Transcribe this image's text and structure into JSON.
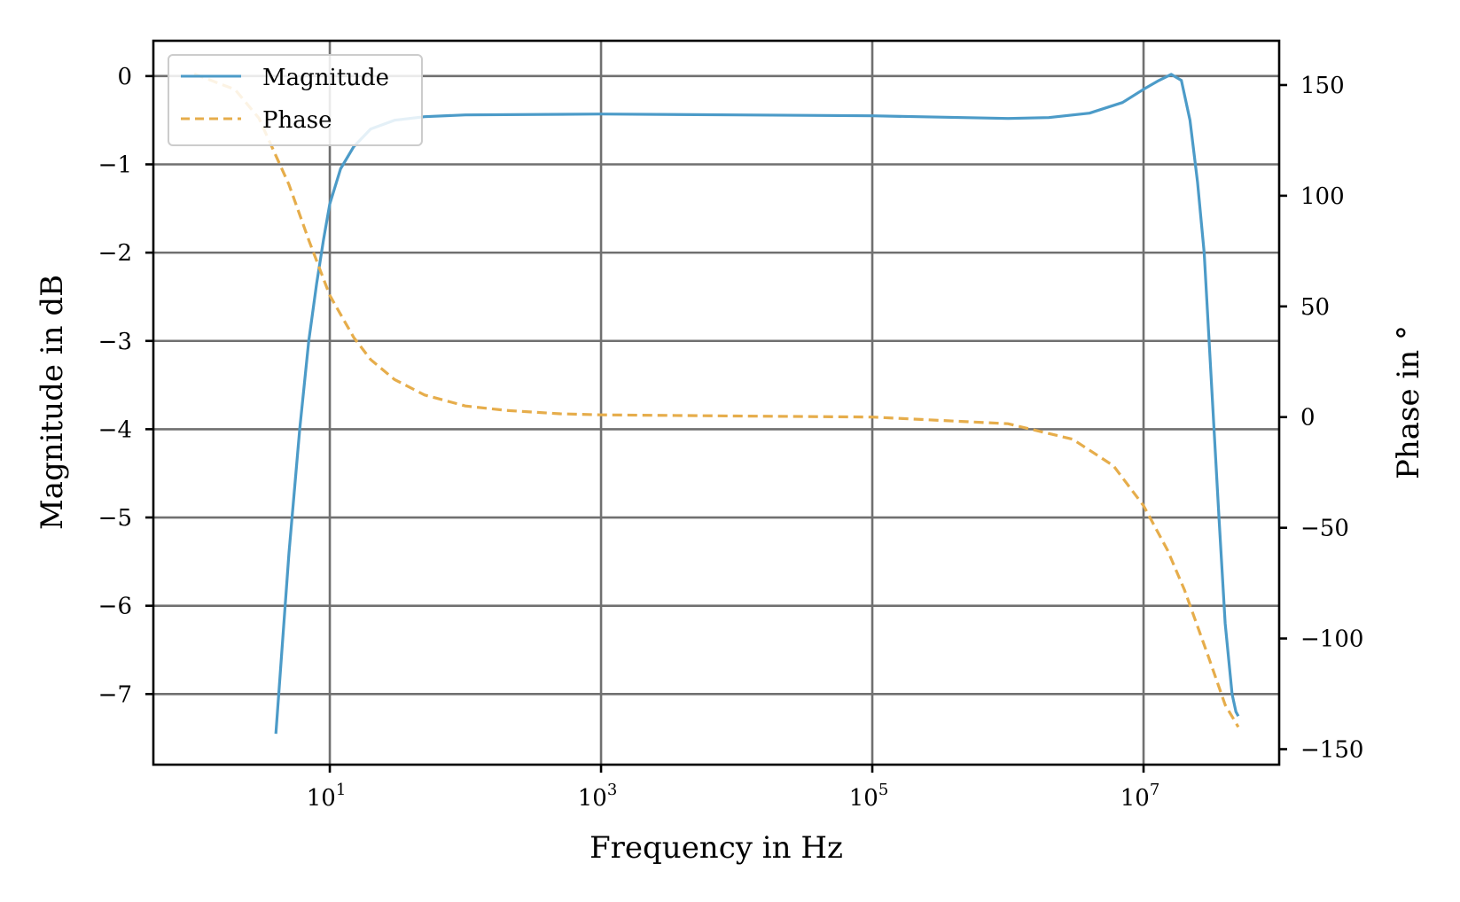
{
  "chart_data": {
    "type": "line",
    "title": "",
    "xlabel": "Frequency in Hz",
    "ylabel": "Magnitude in dB",
    "y2label": "Phase in °",
    "xscale": "log",
    "xlim": [
      0.5,
      100000000
    ],
    "ylim": [
      -7.8,
      0.4
    ],
    "y2lim": [
      -157,
      170
    ],
    "grid": true,
    "legend_position": "top-left",
    "x_ticks": [
      {
        "value": 10,
        "base": "10",
        "exp": "1"
      },
      {
        "value": 1000,
        "base": "10",
        "exp": "3"
      },
      {
        "value": 100000,
        "base": "10",
        "exp": "5"
      },
      {
        "value": 10000000,
        "base": "10",
        "exp": "7"
      }
    ],
    "y_ticks": [
      {
        "value": 0,
        "label": "0"
      },
      {
        "value": -1,
        "label": "−1"
      },
      {
        "value": -2,
        "label": "−2"
      },
      {
        "value": -3,
        "label": "−3"
      },
      {
        "value": -4,
        "label": "−4"
      },
      {
        "value": -5,
        "label": "−5"
      },
      {
        "value": -6,
        "label": "−6"
      },
      {
        "value": -7,
        "label": "−7"
      }
    ],
    "y2_ticks": [
      {
        "value": 150,
        "label": "150"
      },
      {
        "value": 100,
        "label": "100"
      },
      {
        "value": 50,
        "label": "50"
      },
      {
        "value": 0,
        "label": "0"
      },
      {
        "value": -50,
        "label": "−50"
      },
      {
        "value": -100,
        "label": "−100"
      },
      {
        "value": -150,
        "label": "−150"
      }
    ],
    "series": [
      {
        "name": "Magnitude",
        "axis": "left",
        "color": "#4c9bc8",
        "dash": "solid",
        "x": [
          4,
          5,
          6,
          7,
          8,
          9,
          10,
          12,
          15,
          20,
          30,
          50,
          100,
          1000,
          10000,
          100000,
          1000000,
          2000000,
          4000000,
          7000000,
          10000000,
          13000000,
          16000000,
          19000000,
          22000000,
          25000000,
          28000000,
          32000000,
          36000000,
          40000000,
          45000000,
          48000000,
          50000000
        ],
        "y": [
          -7.45,
          -5.4,
          -4.0,
          -3.0,
          -2.35,
          -1.85,
          -1.45,
          -1.05,
          -0.8,
          -0.6,
          -0.5,
          -0.46,
          -0.44,
          -0.43,
          -0.44,
          -0.45,
          -0.48,
          -0.47,
          -0.42,
          -0.3,
          -0.15,
          -0.05,
          0.02,
          -0.05,
          -0.5,
          -1.2,
          -2.0,
          -3.6,
          -5.0,
          -6.2,
          -7.0,
          -7.2,
          -7.25
        ]
      },
      {
        "name": "Phase",
        "axis": "right",
        "color": "#e6ad4b",
        "dash": "dashed",
        "x": [
          1,
          2,
          3,
          5,
          7,
          10,
          15,
          20,
          30,
          50,
          100,
          200,
          500,
          1000,
          10000,
          100000,
          1000000,
          3000000,
          6000000,
          10000000,
          15000000,
          20000000,
          30000000,
          40000000,
          50000000
        ],
        "y": [
          155,
          148,
          135,
          105,
          80,
          55,
          36,
          26,
          17,
          10,
          5,
          3,
          1.5,
          1,
          0.5,
          0,
          -3,
          -10,
          -22,
          -40,
          -60,
          -78,
          -108,
          -130,
          -140
        ]
      }
    ]
  }
}
